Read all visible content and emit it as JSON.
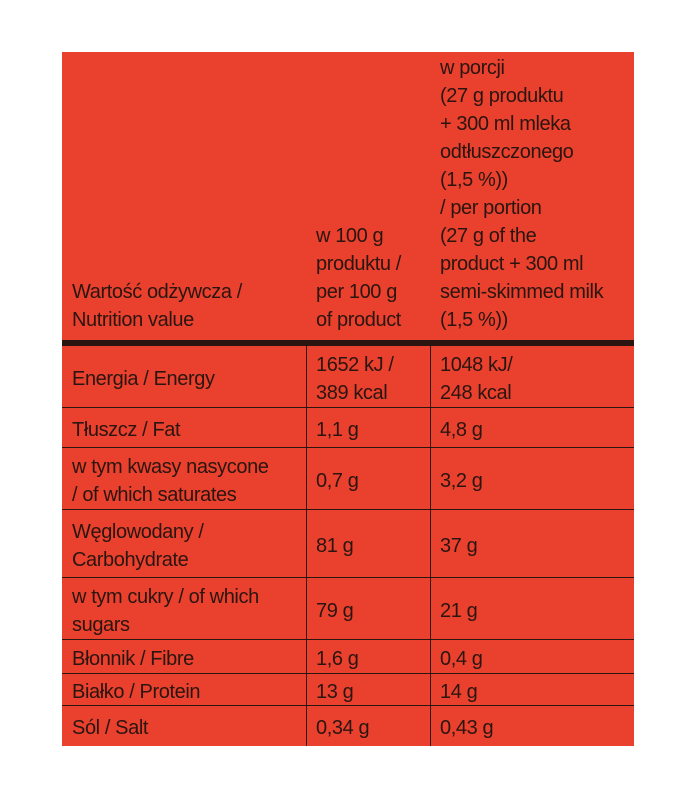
{
  "table": {
    "header": [
      [
        "Wartość odżywcza /",
        "Nutrition value"
      ],
      [
        "w 100 g",
        "produktu /",
        "per 100 g",
        "of product"
      ],
      [
        "w porcji",
        "(27 g produktu",
        "+ 300 ml mleka",
        "odtłuszczonego",
        "(1,5 %))",
        "/ per portion",
        "(27 g of the",
        "product + 300 ml",
        "semi-skimmed milk",
        "(1,5 %))"
      ]
    ],
    "rows": [
      [
        [
          "Energia / Energy"
        ],
        [
          "1652 kJ /",
          "389 kcal"
        ],
        [
          "1048 kJ/",
          "248 kcal"
        ]
      ],
      [
        [
          "Tłuszcz / Fat"
        ],
        [
          "1,1 g"
        ],
        [
          "4,8 g"
        ]
      ],
      [
        [
          "w tym kwasy nasycone",
          "/ of which saturates"
        ],
        [
          "0,7 g"
        ],
        [
          "3,2 g"
        ]
      ],
      [
        [
          "Węglowodany /",
          "Carbohydrate"
        ],
        [
          "81 g"
        ],
        [
          "37 g"
        ]
      ],
      [
        [
          "w tym cukry / of which",
          "sugars"
        ],
        [
          "79 g"
        ],
        [
          "21 g"
        ]
      ],
      [
        [
          "Błonnik / Fibre"
        ],
        [
          "1,6 g"
        ],
        [
          "0,4 g"
        ]
      ],
      [
        [
          "Białko / Protein"
        ],
        [
          "13 g"
        ],
        [
          "14 g"
        ]
      ],
      [
        [
          "Sól / Salt"
        ],
        [
          "0,34 g"
        ],
        [
          "0,43 g"
        ]
      ]
    ]
  }
}
